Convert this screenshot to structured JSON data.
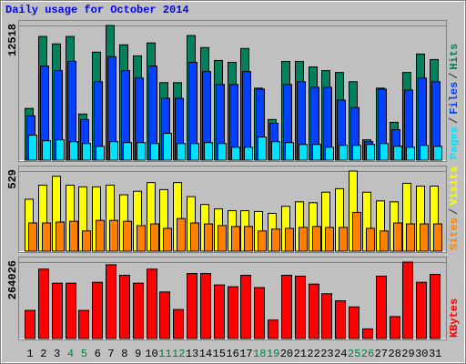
{
  "chart_data": [
    {
      "type": "bar",
      "title": "Daily usage for October 2014",
      "legend_separator": "/",
      "ylim": [
        0,
        12518
      ],
      "yticks": [
        12518
      ],
      "grid": true,
      "series": [
        {
          "name": "Hits",
          "color": "#00805c",
          "values": [
            4856,
            11502,
            10820,
            11502,
            4345,
            10054,
            12518,
            10735,
            9713,
            10906,
            7242,
            7242,
            11587,
            10480,
            9287,
            9116,
            10394,
            6731,
            3834,
            9202,
            9202,
            8690,
            8350,
            8179,
            7327,
            1960,
            6731,
            3578,
            8179,
            9883,
            9372
          ]
        },
        {
          "name": "Files",
          "color": "#0040ff",
          "values": [
            4175,
            8776,
            8350,
            9202,
            3834,
            7327,
            9628,
            8350,
            7668,
            8776,
            5794,
            5794,
            9116,
            8264,
            7072,
            7072,
            8264,
            6646,
            3493,
            7072,
            7327,
            6816,
            6816,
            5623,
            4942,
            1789,
            6646,
            2897,
            6560,
            7668,
            7327
          ]
        },
        {
          "name": "Pages",
          "color": "#00e0ff",
          "values": [
            2386,
            1874,
            1960,
            1789,
            1619,
            1363,
            1789,
            1704,
            1704,
            1619,
            2556,
            1619,
            1619,
            1704,
            1619,
            1278,
            1278,
            2215,
            1789,
            1704,
            1534,
            1534,
            1278,
            1448,
            1448,
            1534,
            1619,
            1363,
            1278,
            1448,
            1363
          ]
        }
      ]
    },
    {
      "type": "bar",
      "legend_separator": "/",
      "ylim": [
        0,
        529
      ],
      "yticks": [
        529
      ],
      "grid": true,
      "series": [
        {
          "name": "Visits",
          "color": "#ffff00",
          "values": [
            345,
            437,
            495,
            437,
            426,
            426,
            437,
            374,
            397,
            454,
            408,
            454,
            362,
            311,
            282,
            270,
            270,
            265,
            253,
            299,
            328,
            322,
            391,
            414,
            529,
            391,
            334,
            328,
            449,
            431,
            431
          ]
        },
        {
          "name": "Sites",
          "color": "#ff8000",
          "values": [
            190,
            190,
            196,
            201,
            138,
            207,
            207,
            201,
            173,
            184,
            155,
            219,
            190,
            184,
            173,
            167,
            167,
            138,
            150,
            155,
            161,
            167,
            161,
            161,
            259,
            155,
            138,
            190,
            184,
            184,
            184
          ]
        }
      ]
    },
    {
      "type": "bar",
      "ylim": [
        0,
        264026
      ],
      "yticks": [
        264026
      ],
      "grid": true,
      "categories": [
        "1",
        "2",
        "3",
        "4",
        "5",
        "6",
        "7",
        "8",
        "9",
        "10",
        "11",
        "12",
        "13",
        "14",
        "15",
        "16",
        "17",
        "18",
        "19",
        "20",
        "21",
        "22",
        "23",
        "24",
        "25",
        "26",
        "27",
        "28",
        "29",
        "30",
        "31"
      ],
      "category_colors": [
        "#000000",
        "#000000",
        "#000000",
        "#007f3f",
        "#007f3f",
        "#000000",
        "#000000",
        "#000000",
        "#000000",
        "#000000",
        "#007f3f",
        "#007f3f",
        "#000000",
        "#000000",
        "#000000",
        "#000000",
        "#000000",
        "#007f3f",
        "#007f3f",
        "#000000",
        "#000000",
        "#000000",
        "#000000",
        "#000000",
        "#007f3f",
        "#007f3f",
        "#000000",
        "#000000",
        "#000000",
        "#000000",
        "#000000"
      ],
      "series": [
        {
          "name": "KBytes",
          "color": "#ff0000",
          "values": [
            99000,
            240000,
            192000,
            192000,
            99000,
            195000,
            255000,
            219000,
            192000,
            240000,
            162000,
            102000,
            225000,
            225000,
            186000,
            180000,
            219000,
            177000,
            66000,
            219000,
            216000,
            189000,
            156000,
            132000,
            111000,
            36000,
            216000,
            78000,
            264026,
            195000,
            222000
          ]
        }
      ]
    }
  ]
}
